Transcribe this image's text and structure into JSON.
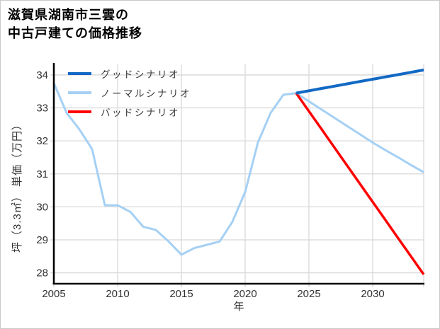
{
  "page": {
    "title_line1": "滋賀県湖南市三雲の",
    "title_line2": "中古戸建ての価格推移"
  },
  "chart_data": {
    "type": "line",
    "title": "滋賀県湖南市三雲の中古戸建ての価格推移",
    "xlabel": "年",
    "ylabel": "坪（3.3㎡） 単価（万円）",
    "x_ticks": [
      2005,
      2010,
      2015,
      2020,
      2025,
      2030
    ],
    "y_ticks": [
      28,
      29,
      30,
      31,
      32,
      33,
      34
    ],
    "xlim": [
      2005,
      2034
    ],
    "ylim": [
      27.67,
      34.32
    ],
    "grid": true,
    "legend_position": "top-left",
    "colors": {
      "grid": "#d8d8d8",
      "axis": "#000000",
      "tick_text": "#333333",
      "legend_text": "#3a3a3a"
    },
    "series": [
      {
        "name": "グッドシナリオ",
        "color": "#1269c4",
        "width": 4,
        "z": 3,
        "x": [
          2024,
          2025,
          2026,
          2027,
          2028,
          2029,
          2030,
          2031,
          2032,
          2033,
          2034
        ],
        "values": [
          33.45,
          33.52,
          33.59,
          33.66,
          33.73,
          33.8,
          33.87,
          33.94,
          34.01,
          34.08,
          34.15
        ]
      },
      {
        "name": "ノーマルシナリオ",
        "color": "#a5d0f4",
        "width": 3,
        "z": 1,
        "x": [
          2005,
          2006,
          2007,
          2008,
          2009,
          2010,
          2011,
          2012,
          2013,
          2014,
          2015,
          2016,
          2017,
          2018,
          2019,
          2020,
          2021,
          2022,
          2023,
          2024,
          2025,
          2026,
          2027,
          2028,
          2029,
          2030,
          2031,
          2032,
          2033,
          2034
        ],
        "values": [
          33.75,
          32.85,
          32.35,
          31.75,
          30.05,
          30.05,
          29.85,
          29.4,
          29.3,
          28.95,
          28.55,
          28.75,
          28.85,
          28.95,
          29.55,
          30.45,
          31.95,
          32.85,
          33.4,
          33.45,
          33.2,
          32.95,
          32.7,
          32.45,
          32.2,
          31.95,
          31.72,
          31.5,
          31.27,
          31.05
        ]
      },
      {
        "name": "バッドシナリオ",
        "color": "#ff0000",
        "width": 3.5,
        "z": 2,
        "x": [
          2024,
          2025,
          2026,
          2027,
          2028,
          2029,
          2030,
          2031,
          2032,
          2033,
          2034
        ],
        "values": [
          33.45,
          32.9,
          32.35,
          31.8,
          31.25,
          30.7,
          30.15,
          29.6,
          29.05,
          28.5,
          27.95
        ]
      }
    ]
  }
}
